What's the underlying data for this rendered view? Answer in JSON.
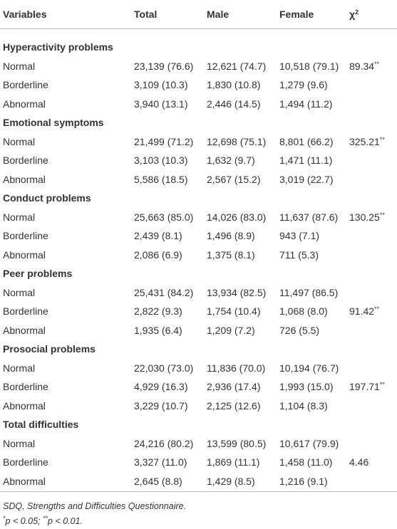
{
  "table": {
    "headers": [
      "Variables",
      "Total",
      "Male",
      "Female"
    ],
    "chi_header": {
      "symbol": "χ",
      "sup": "2"
    },
    "sections": [
      {
        "title": "Hyperactivity problems",
        "rows": [
          {
            "label": "Normal",
            "total": "23,139 (76.6)",
            "male": "12,621 (74.7)",
            "female": "10,518 (79.1)",
            "chi": {
              "value": "89.34",
              "mark": "**"
            }
          },
          {
            "label": "Borderline",
            "total": "3,109 (10.3)",
            "male": "1,830 (10.8)",
            "female": "1,279 (9.6)"
          },
          {
            "label": "Abnormal",
            "total": "3,940 (13.1)",
            "male": "2,446 (14.5)",
            "female": "1,494 (11.2)"
          }
        ]
      },
      {
        "title": "Emotional symptoms",
        "rows": [
          {
            "label": "Normal",
            "total": "21,499 (71.2)",
            "male": "12,698 (75.1)",
            "female": "8,801 (66.2)",
            "chi": {
              "value": "325.21",
              "mark": "**"
            }
          },
          {
            "label": "Borderline",
            "total": "3,103 (10.3)",
            "male": "1,632 (9.7)",
            "female": "1,471 (11.1)"
          },
          {
            "label": "Abnormal",
            "total": "5,586 (18.5)",
            "male": "2,567 (15.2)",
            "female": "3,019 (22.7)"
          }
        ]
      },
      {
        "title": "Conduct problems",
        "rows": [
          {
            "label": "Normal",
            "total": "25,663 (85.0)",
            "male": "14,026 (83.0)",
            "female": "11,637 (87.6)",
            "chi": {
              "value": "130.25",
              "mark": "**"
            }
          },
          {
            "label": "Borderline",
            "total": "2,439 (8.1)",
            "male": "1,496 (8.9)",
            "female": "943 (7.1)"
          },
          {
            "label": "Abnormal",
            "total": "2,086 (6.9)",
            "male": "1,375 (8.1)",
            "female": "711 (5.3)"
          }
        ]
      },
      {
        "title": "Peer problems",
        "rows": [
          {
            "label": "Normal",
            "total": "25,431 (84.2)",
            "male": "13,934 (82.5)",
            "female": "11,497 (86.5)"
          },
          {
            "label": "Borderline",
            "total": "2,822 (9.3)",
            "male": "1,754 (10.4)",
            "female": "1,068 (8.0)",
            "chi": {
              "value": "91.42",
              "mark": "**"
            }
          },
          {
            "label": "Abnormal",
            "total": "1,935 (6.4)",
            "male": "1,209 (7.2)",
            "female": "726 (5.5)"
          }
        ]
      },
      {
        "title": "Prosocial problems",
        "rows": [
          {
            "label": "Normal",
            "total": "22,030 (73.0)",
            "male": "11,836 (70.0)",
            "female": "10,194 (76.7)"
          },
          {
            "label": "Borderline",
            "total": "4,929 (16.3)",
            "male": "2,936 (17.4)",
            "female": "1,993 (15.0)",
            "chi": {
              "value": "197.71",
              "mark": "**"
            }
          },
          {
            "label": "Abnormal",
            "total": "3,229 (10.7)",
            "male": "2,125 (12.6)",
            "female": "1,104 (8.3)"
          }
        ]
      },
      {
        "title": "Total difficulties",
        "rows": [
          {
            "label": "Normal",
            "total": "24,216 (80.2)",
            "male": "13,599 (80.5)",
            "female": "10,617 (79.9)"
          },
          {
            "label": "Borderline",
            "total": "3,327 (11.0)",
            "male": "1,869 (11.1)",
            "female": "1,458 (11.0)",
            "chi": {
              "value": "4.46"
            }
          },
          {
            "label": "Abnormal",
            "total": "2,645 (8.8)",
            "male": "1,429 (8.5)",
            "female": "1,216 (9.1)"
          }
        ]
      }
    ],
    "footnotes": {
      "abbreviation": "SDQ, Strengths and Difficulties Questionnaire.",
      "significance": [
        {
          "sup": "*",
          "text": "p < 0.05; "
        },
        {
          "sup": "**",
          "text": "p < 0.01."
        }
      ]
    }
  }
}
